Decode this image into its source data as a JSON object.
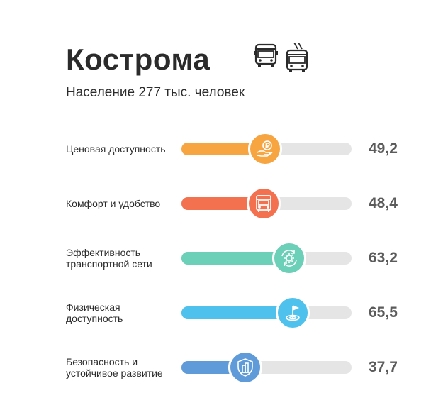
{
  "header": {
    "title": "Кострома",
    "subtitle": "Население 277 тыс. человек",
    "icons": [
      "bus-icon",
      "trolleybus-icon"
    ]
  },
  "chart_data": {
    "type": "bar",
    "categories": [
      "Ценовая доступность",
      "Комфорт и удобство",
      "Эффективность транспортной сети",
      "Физическая доступность",
      "Безопасность и устойчивое развитие"
    ],
    "values": [
      49.2,
      48.4,
      63.2,
      65.5,
      37.7
    ],
    "value_labels": [
      "49,2",
      "48,4",
      "63,2",
      "65,5",
      "37,7"
    ],
    "xlim": [
      0,
      100
    ],
    "colors": [
      "#f7a541",
      "#f3714f",
      "#6ccfb7",
      "#4ec1ec",
      "#5f9bd8"
    ],
    "icons": [
      "ruble-coin-hand-icon",
      "bus-front-icon",
      "gear-arrows-icon",
      "flag-target-icon",
      "shield-building-icon"
    ],
    "track_color": "#e5e5e5"
  }
}
